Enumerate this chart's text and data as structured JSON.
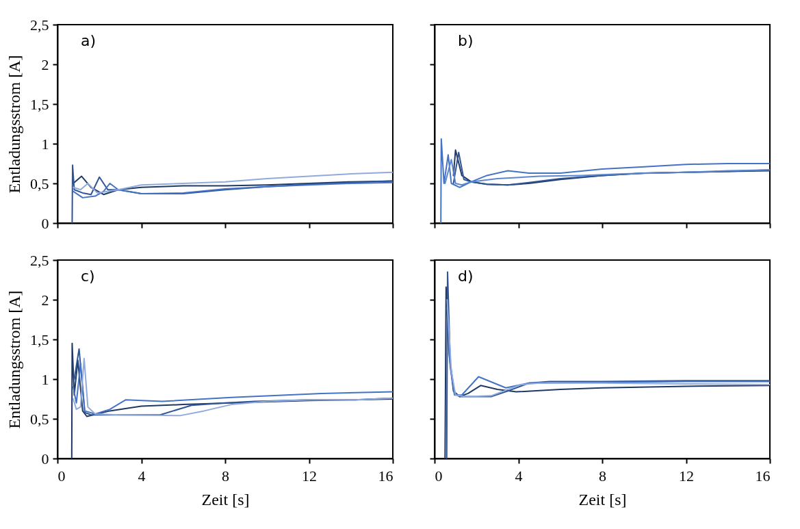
{
  "chart_data": [
    {
      "type": "line",
      "annotations": [
        "a)"
      ],
      "ylabel": "Entladungsstrom [A]",
      "tick_labels": "y",
      "xlim": [
        0,
        16
      ],
      "xticks": [
        0,
        4,
        8,
        12,
        16
      ],
      "ylim": [
        0,
        2.5
      ],
      "yticks": [
        0,
        {
          "value": 0.5,
          "label": "0,5"
        },
        1,
        {
          "value": 1.5,
          "label": "1,5"
        },
        2,
        {
          "value": 2.5,
          "label": "2,5"
        }
      ],
      "series": [
        {
          "color": "#1f3864",
          "x": [
            0.75,
            1.15,
            1.6,
            2.2,
            2.9,
            4,
            6,
            8,
            10,
            12,
            14,
            16
          ],
          "values": [
            0.5,
            0.59,
            0.45,
            0.36,
            0.42,
            0.45,
            0.47,
            0.47,
            0.48,
            0.5,
            0.52,
            0.53
          ]
        },
        {
          "color": "#2f5597",
          "x": [
            0.7,
            0.72,
            0.8,
            1.2,
            1.6,
            2.0,
            2.4,
            2.9,
            4,
            6,
            8,
            10,
            12,
            14,
            16
          ],
          "values": [
            0,
            0.73,
            0.42,
            0.38,
            0.36,
            0.58,
            0.42,
            0.42,
            0.37,
            0.37,
            0.42,
            0.46,
            0.49,
            0.51,
            0.53
          ]
        },
        {
          "color": "#4472c4",
          "x": [
            0.75,
            1.2,
            1.8,
            2.2,
            2.5,
            2.9,
            4,
            6,
            8,
            10,
            12,
            14,
            16
          ],
          "values": [
            0.4,
            0.32,
            0.34,
            0.4,
            0.5,
            0.42,
            0.37,
            0.38,
            0.43,
            0.46,
            0.48,
            0.5,
            0.51
          ]
        },
        {
          "color": "#8faadc",
          "x": [
            0.75,
            1.1,
            1.45,
            1.9,
            2.9,
            4,
            6,
            8,
            10,
            12,
            14,
            16
          ],
          "values": [
            0.45,
            0.42,
            0.5,
            0.38,
            0.42,
            0.48,
            0.5,
            0.52,
            0.56,
            0.59,
            0.62,
            0.64
          ]
        }
      ]
    },
    {
      "type": "line",
      "annotations": [
        "b)"
      ],
      "tick_labels": false,
      "xlim": [
        0,
        16
      ],
      "xticks": [
        0,
        4,
        8,
        12,
        16
      ],
      "ylim": [
        0,
        2.5
      ],
      "yticks": [
        0,
        0.5,
        1,
        1.5,
        2,
        2.5
      ],
      "series": [
        {
          "color": "#1f3864",
          "x": [
            0.9,
            1.0,
            1.3,
            1.75,
            2.5,
            3.5,
            4.5,
            6,
            8,
            10,
            12,
            14,
            16
          ],
          "values": [
            0.6,
            0.92,
            0.6,
            0.52,
            0.49,
            0.48,
            0.5,
            0.55,
            0.6,
            0.63,
            0.64,
            0.65,
            0.66
          ]
        },
        {
          "color": "#2f5597",
          "x": [
            0.9,
            1.15,
            1.4,
            1.75,
            2.5,
            3.5,
            4.5,
            6,
            8,
            10,
            12,
            14,
            16
          ],
          "values": [
            0.5,
            0.89,
            0.55,
            0.52,
            0.49,
            0.48,
            0.51,
            0.56,
            0.6,
            0.63,
            0.64,
            0.65,
            0.67
          ]
        },
        {
          "color": "#4472c4",
          "x": [
            0.3,
            0.32,
            0.45,
            0.65,
            0.8,
            1.2,
            1.75,
            2.5,
            3.5,
            4.5,
            6,
            8,
            10,
            12,
            14,
            16
          ],
          "values": [
            0,
            1.06,
            0.5,
            0.86,
            0.5,
            0.45,
            0.52,
            0.6,
            0.66,
            0.63,
            0.63,
            0.68,
            0.71,
            0.74,
            0.75,
            0.75
          ]
        },
        {
          "color": "#5b87cf",
          "x": [
            0.5,
            0.8,
            1.0,
            1.3,
            1.75,
            3,
            5,
            7,
            9,
            12,
            14,
            16
          ],
          "values": [
            0.5,
            0.8,
            0.5,
            0.48,
            0.52,
            0.56,
            0.59,
            0.6,
            0.62,
            0.64,
            0.66,
            0.67
          ]
        }
      ]
    },
    {
      "type": "line",
      "annotations": [
        "c)"
      ],
      "xlabel": "Zeit [s]",
      "ylabel": "Entladungsstrom [A]",
      "xlim": [
        0,
        16
      ],
      "xticks": [
        0,
        4,
        8,
        12,
        16
      ],
      "ylim": [
        0,
        2.5
      ],
      "yticks": [
        0,
        {
          "value": 0.5,
          "label": "0,5"
        },
        1,
        {
          "value": 1.5,
          "label": "1,5"
        },
        2,
        {
          "value": 2.5,
          "label": "2,5"
        }
      ],
      "series": [
        {
          "color": "#1f3864",
          "x": [
            0.68,
            0.7,
            0.8,
            0.97,
            1.2,
            1.4,
            2.5,
            4,
            6,
            9.4,
            12,
            14.2,
            16
          ],
          "values": [
            0,
            1.45,
            0.8,
            1.24,
            0.6,
            0.53,
            0.6,
            0.66,
            0.68,
            0.71,
            0.73,
            0.74,
            0.75
          ]
        },
        {
          "color": "#2f5597",
          "x": [
            0.8,
            1.03,
            1.3,
            1.6,
            3,
            4.9,
            6.4,
            8,
            9.4,
            12,
            14.2,
            16
          ],
          "values": [
            1.0,
            1.38,
            0.58,
            0.55,
            0.55,
            0.55,
            0.67,
            0.7,
            0.72,
            0.74,
            0.74,
            0.76
          ]
        },
        {
          "color": "#4472c4",
          "x": [
            0.75,
            0.9,
            1.1,
            1.3,
            1.8,
            2.5,
            3.26,
            5,
            8.3,
            12.6,
            14.2,
            16
          ],
          "values": [
            0.9,
            0.7,
            1.2,
            0.6,
            0.56,
            0.62,
            0.74,
            0.72,
            0.77,
            0.82,
            0.83,
            0.84
          ]
        },
        {
          "color": "#8faadc",
          "x": [
            0.75,
            0.9,
            1.1,
            1.27,
            1.45,
            1.8,
            3,
            5.84,
            7,
            8.3,
            10,
            12,
            14.2,
            16
          ],
          "values": [
            0.75,
            0.62,
            0.65,
            1.26,
            0.65,
            0.56,
            0.55,
            0.54,
            0.6,
            0.68,
            0.72,
            0.74,
            0.74,
            0.76
          ]
        }
      ]
    },
    {
      "type": "line",
      "annotations": [
        "d)"
      ],
      "xlabel": "Zeit [s]",
      "tick_labels": "x",
      "xlim": [
        0,
        16
      ],
      "xticks": [
        0,
        4,
        8,
        12,
        16
      ],
      "ylim": [
        0,
        2.5
      ],
      "yticks": [
        0,
        0.5,
        1,
        1.5,
        2,
        2.5
      ],
      "series": [
        {
          "color": "#1f3864",
          "x": [
            0.5,
            0.55,
            0.7,
            0.9,
            1.2,
            1.6,
            2.2,
            3,
            3.9,
            6,
            8,
            12,
            16
          ],
          "values": [
            0,
            2.16,
            1.3,
            0.85,
            0.78,
            0.82,
            0.92,
            0.87,
            0.84,
            0.87,
            0.89,
            0.91,
            0.92
          ]
        },
        {
          "color": "#2f5597",
          "x": [
            0.58,
            0.62,
            0.75,
            0.95,
            1.2,
            2,
            2.7,
            3.5,
            4.5,
            5.5,
            8,
            12,
            16
          ],
          "values": [
            0,
            2.35,
            1.2,
            0.82,
            0.78,
            0.78,
            0.78,
            0.85,
            0.95,
            0.97,
            0.97,
            0.98,
            0.98
          ]
        },
        {
          "color": "#4472c4",
          "x": [
            0.6,
            0.75,
            0.95,
            1.3,
            2.1,
            3.4,
            4.5,
            8,
            12,
            16
          ],
          "values": [
            1.9,
            1.15,
            0.8,
            0.8,
            1.03,
            0.89,
            0.95,
            0.96,
            0.97,
            0.97
          ]
        },
        {
          "color": "#8faadc",
          "x": [
            0.6,
            0.8,
            1.0,
            1.5,
            2.7,
            4.1,
            5,
            8,
            12,
            16
          ],
          "values": [
            2.0,
            1.1,
            0.8,
            0.78,
            0.79,
            0.93,
            0.95,
            0.95,
            0.94,
            0.93
          ]
        }
      ]
    }
  ]
}
